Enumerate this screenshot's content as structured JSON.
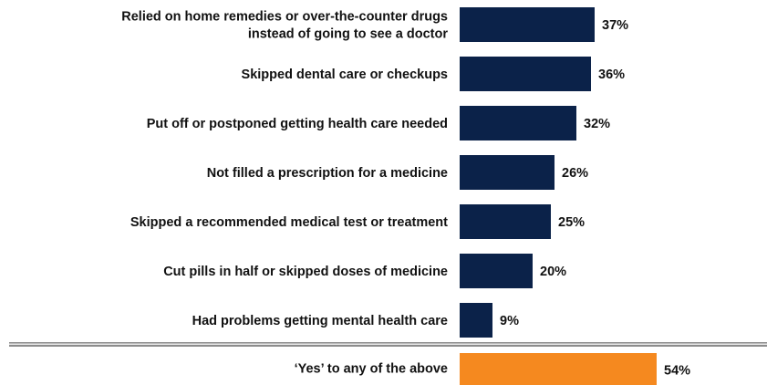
{
  "chart_data": {
    "type": "bar",
    "orientation": "horizontal",
    "title": "",
    "xlabel": "",
    "ylabel": "",
    "xlim": [
      0,
      100
    ],
    "grid": false,
    "legend": "none",
    "value_suffix": "%",
    "bar_color": "#0b2249",
    "summary_color": "#f5891f",
    "separator_color": "#8c8c8c",
    "categories": [
      [
        "Relied on home remedies or over-the-counter drugs",
        "instead of going to see a doctor"
      ],
      [
        "Skipped dental care or checkups"
      ],
      [
        "Put off or postponed getting health care needed"
      ],
      [
        "Not filled a prescription for a medicine"
      ],
      [
        "Skipped a recommended medical test or treatment"
      ],
      [
        "Cut pills in half or skipped doses of medicine"
      ],
      [
        "Had problems getting mental health care"
      ]
    ],
    "values": [
      37,
      36,
      32,
      26,
      25,
      20,
      9
    ],
    "value_labels": [
      "37%",
      "36%",
      "32%",
      "26%",
      "25%",
      "20%",
      "9%"
    ],
    "summary": {
      "category": "‘Yes’ to any of the above",
      "value": 54,
      "value_label": "54%"
    }
  }
}
